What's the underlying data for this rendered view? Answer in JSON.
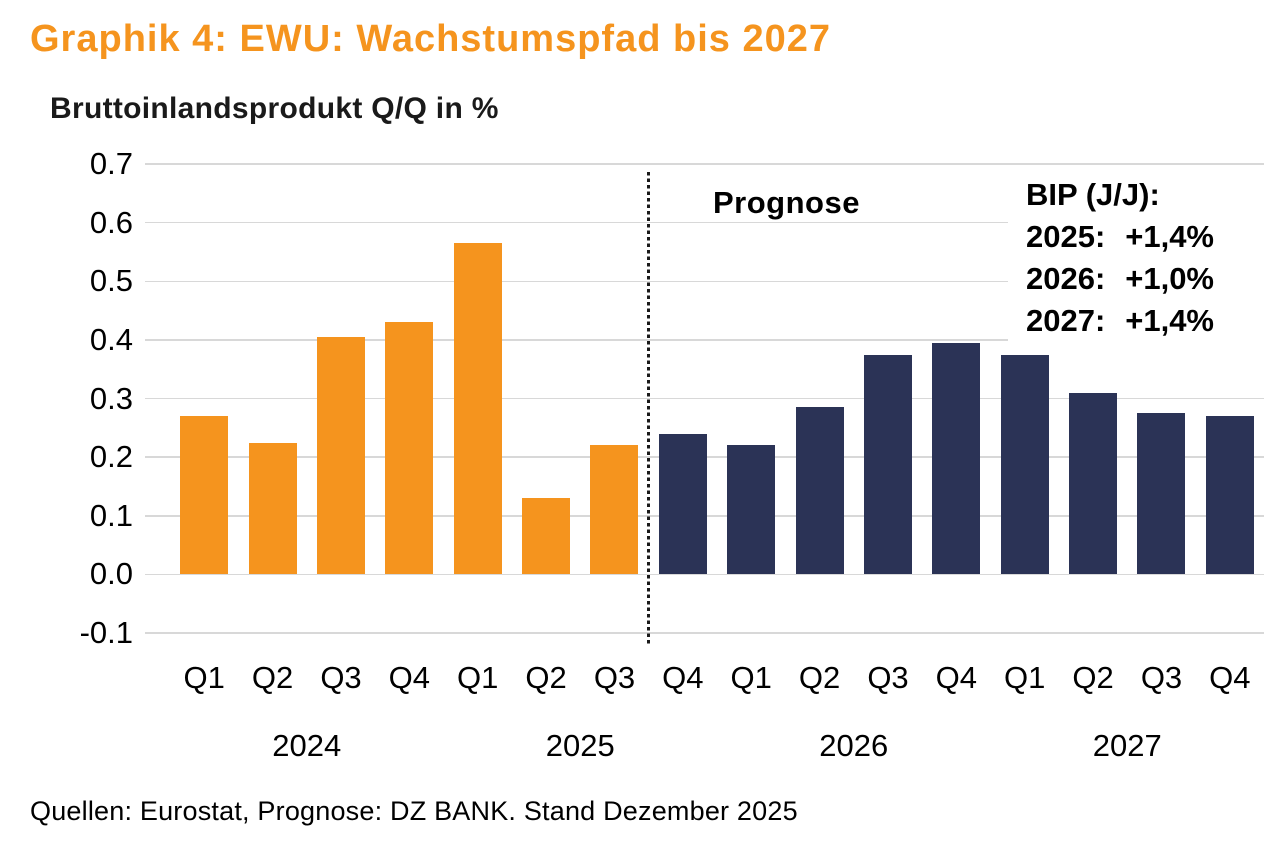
{
  "header": {
    "title": "Graphik 4: EWU: Wachstumspfad bis 2027",
    "subtitle": "Bruttoinlandsprodukt Q/Q in %"
  },
  "annotations": {
    "prognose_label": "Prognose",
    "bip_header": "BIP (J/J):",
    "bip_lines": [
      {
        "label": "2025:",
        "value": "+1,4%"
      },
      {
        "label": "2026:",
        "value": "+1,0%"
      },
      {
        "label": "2027:",
        "value": "+1,4%"
      }
    ]
  },
  "footer": {
    "source": "Quellen: Eurostat, Prognose: DZ BANK. Stand Dezember 2025"
  },
  "colors": {
    "title": "#F5941E",
    "actual_bar": "#F5941E",
    "forecast_bar": "#2B3356",
    "gridline": "#D8D8D8",
    "divider": "#1A1A1A",
    "axis_text": "#000000"
  },
  "chart_data": {
    "type": "bar",
    "title": "Bruttoinlandsprodukt Q/Q in %",
    "ylabel": "Q/Q in %",
    "ylim": [
      -0.1,
      0.7
    ],
    "ytick_step": 0.1,
    "grid": true,
    "legend": null,
    "forecast_starts_at_index": 7,
    "year_labels": [
      "2024",
      "2025",
      "2026",
      "2027"
    ],
    "bars": [
      {
        "quarter": "Q1",
        "year": 2024,
        "value": 0.27,
        "segment": "actual"
      },
      {
        "quarter": "Q2",
        "year": 2024,
        "value": 0.225,
        "segment": "actual"
      },
      {
        "quarter": "Q3",
        "year": 2024,
        "value": 0.405,
        "segment": "actual"
      },
      {
        "quarter": "Q4",
        "year": 2024,
        "value": 0.43,
        "segment": "actual"
      },
      {
        "quarter": "Q1",
        "year": 2025,
        "value": 0.565,
        "segment": "actual"
      },
      {
        "quarter": "Q2",
        "year": 2025,
        "value": 0.13,
        "segment": "actual"
      },
      {
        "quarter": "Q3",
        "year": 2025,
        "value": 0.22,
        "segment": "actual"
      },
      {
        "quarter": "Q4",
        "year": 2025,
        "value": 0.24,
        "segment": "forecast"
      },
      {
        "quarter": "Q1",
        "year": 2026,
        "value": 0.22,
        "segment": "forecast"
      },
      {
        "quarter": "Q2",
        "year": 2026,
        "value": 0.285,
        "segment": "forecast"
      },
      {
        "quarter": "Q3",
        "year": 2026,
        "value": 0.375,
        "segment": "forecast"
      },
      {
        "quarter": "Q4",
        "year": 2026,
        "value": 0.395,
        "segment": "forecast"
      },
      {
        "quarter": "Q1",
        "year": 2027,
        "value": 0.375,
        "segment": "forecast"
      },
      {
        "quarter": "Q2",
        "year": 2027,
        "value": 0.31,
        "segment": "forecast"
      },
      {
        "quarter": "Q3",
        "year": 2027,
        "value": 0.275,
        "segment": "forecast"
      },
      {
        "quarter": "Q4",
        "year": 2027,
        "value": 0.27,
        "segment": "forecast"
      }
    ]
  }
}
